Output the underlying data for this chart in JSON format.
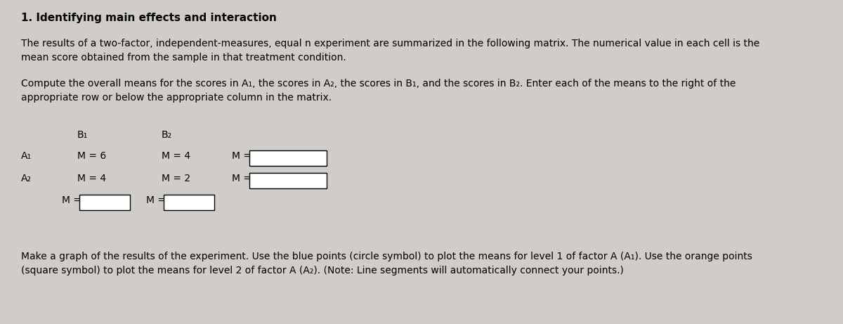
{
  "bg_color": "#d0cdc8",
  "title": "1. Identifying main effects and interaction",
  "para1_line1": "The results of a two-factor, independent-measures, equal n experiment are summarized in the following matrix. The numerical value in each cell is the",
  "para1_line2": "mean score obtained from the sample in that treatment condition.",
  "para2_line1": "Compute the overall means for the scores in A₁, the scores in A₂, the scores in B₁, and the scores in B₂. Enter each of the means to the right of the",
  "para2_line2": "appropriate row or below the appropriate column in the matrix.",
  "para3_line1": "Make a graph of the results of the experiment. Use the blue points (circle symbol) to plot the means for level 1 of factor A (A₁). Use the orange points",
  "para3_line2": "(square symbol) to plot the means for level 2 of factor A (A₂). (Note: Line segments will automatically connect your points.)",
  "col_headers": [
    "B₁",
    "B₂"
  ],
  "row_labels": [
    "A₁",
    "A₂"
  ],
  "cell_values": [
    [
      "M = 6",
      "M = 4"
    ],
    [
      "M = 4",
      "M = 2"
    ]
  ],
  "row_mean_label": "M =",
  "col_mean_label": "M =",
  "font_size_title": 11,
  "font_size_body": 10,
  "font_size_matrix": 10
}
